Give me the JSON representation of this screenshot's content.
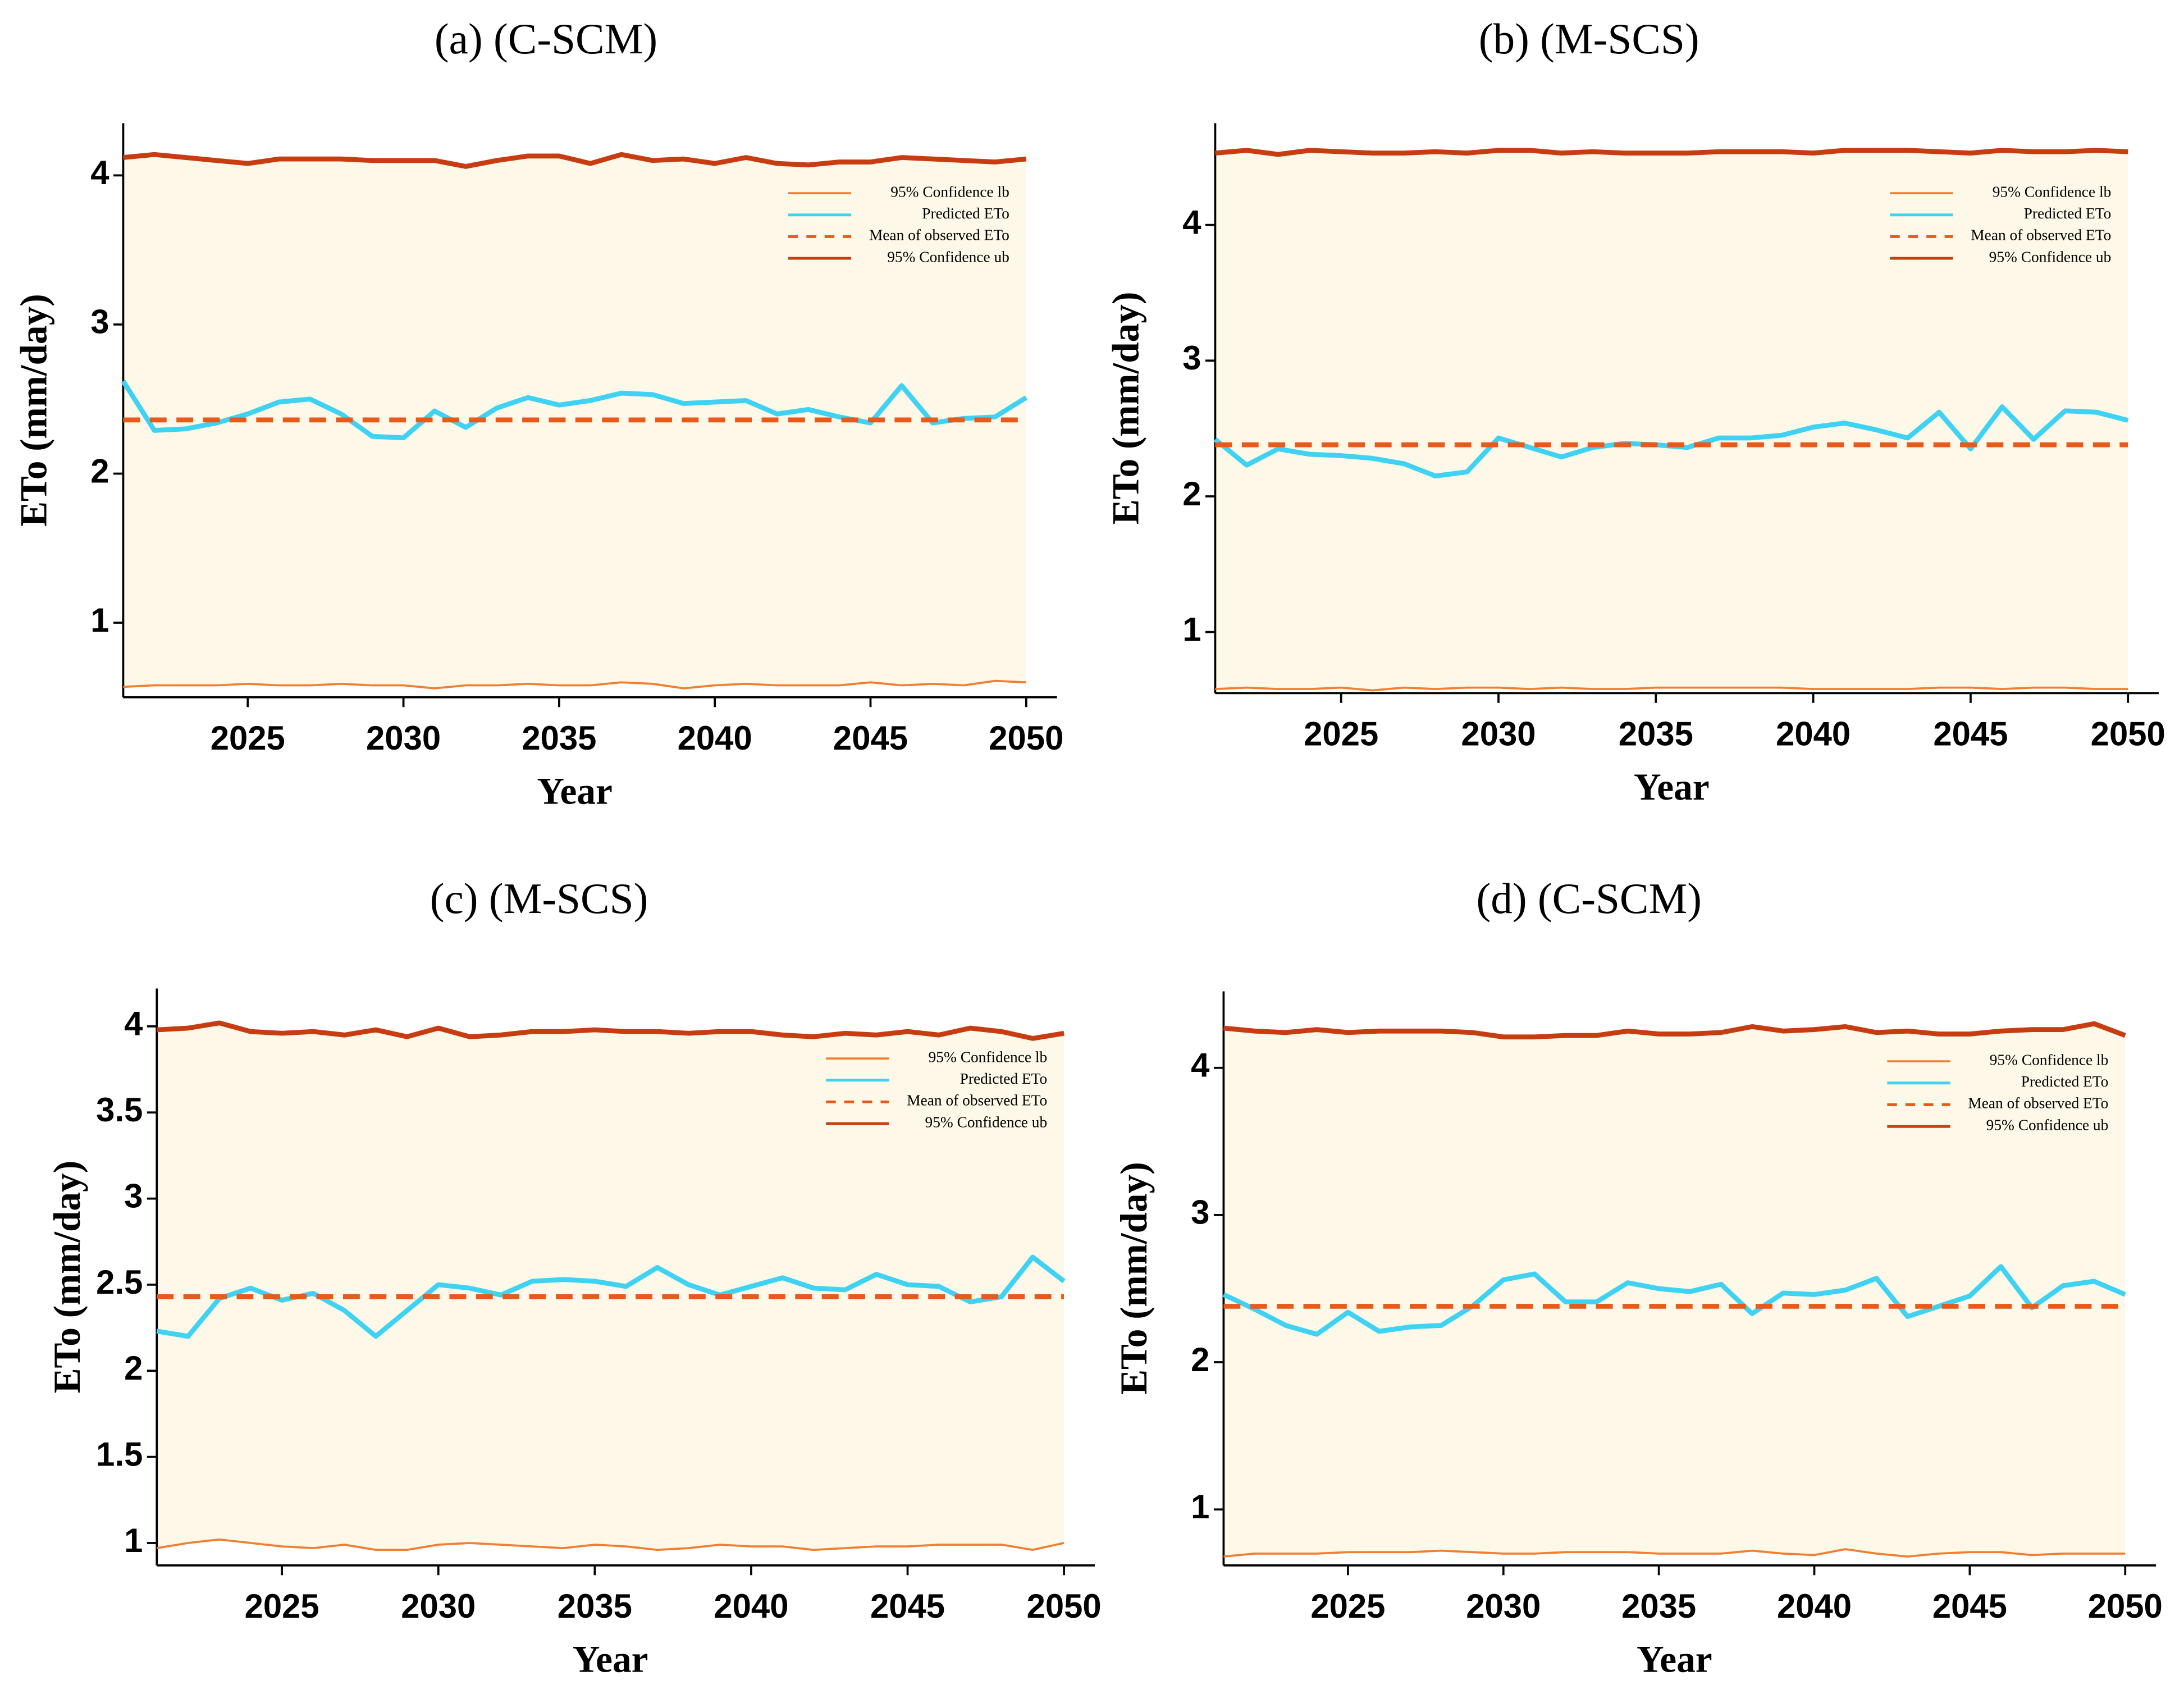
{
  "chart_data": [
    {
      "type": "line",
      "title": "(a) (C-SCM)",
      "xlabel": "Year",
      "ylabel": "ETo (mm/day)",
      "x": [
        2021,
        2022,
        2023,
        2024,
        2025,
        2026,
        2027,
        2028,
        2029,
        2030,
        2031,
        2032,
        2033,
        2034,
        2035,
        2036,
        2037,
        2038,
        2039,
        2040,
        2041,
        2042,
        2043,
        2044,
        2045,
        2046,
        2047,
        2048,
        2049,
        2050
      ],
      "xlim": [
        2021,
        2050
      ],
      "xticks": [
        2025,
        2030,
        2035,
        2040,
        2045,
        2050
      ],
      "ylim": [
        0.5,
        4.35
      ],
      "yticks": [
        1,
        2,
        3,
        4
      ],
      "legend": "upper right",
      "band_color": "#fdf8e7",
      "series": [
        {
          "name": "95% Confidence lb",
          "color": "#f07f30",
          "linewidth": 1.5,
          "linestyle": "solid",
          "values": [
            0.57,
            0.58,
            0.58,
            0.58,
            0.59,
            0.58,
            0.58,
            0.59,
            0.58,
            0.58,
            0.56,
            0.58,
            0.58,
            0.59,
            0.58,
            0.58,
            0.6,
            0.59,
            0.56,
            0.58,
            0.59,
            0.58,
            0.58,
            0.58,
            0.6,
            0.58,
            0.59,
            0.58,
            0.61,
            0.6
          ]
        },
        {
          "name": "Predicted ETo",
          "color": "#3fd2f2",
          "linewidth": 3.5,
          "linestyle": "solid",
          "values": [
            2.62,
            2.29,
            2.3,
            2.34,
            2.4,
            2.48,
            2.5,
            2.4,
            2.25,
            2.24,
            2.42,
            2.31,
            2.44,
            2.51,
            2.46,
            2.49,
            2.54,
            2.53,
            2.47,
            2.48,
            2.49,
            2.4,
            2.43,
            2.38,
            2.34,
            2.59,
            2.34,
            2.37,
            2.38,
            2.51
          ]
        },
        {
          "name": "Mean of observed ETo",
          "color": "#e8591a",
          "linewidth": 3.5,
          "linestyle": "dashed",
          "values": [
            2.36,
            2.36,
            2.36,
            2.36,
            2.36,
            2.36,
            2.36,
            2.36,
            2.36,
            2.36,
            2.36,
            2.36,
            2.36,
            2.36,
            2.36,
            2.36,
            2.36,
            2.36,
            2.36,
            2.36,
            2.36,
            2.36,
            2.36,
            2.36,
            2.36,
            2.36,
            2.36,
            2.36,
            2.36,
            2.36
          ]
        },
        {
          "name": "95% Confidence ub",
          "color": "#c83c12",
          "linewidth": 3.5,
          "linestyle": "solid",
          "values": [
            4.12,
            4.14,
            4.12,
            4.1,
            4.08,
            4.11,
            4.11,
            4.11,
            4.1,
            4.1,
            4.1,
            4.06,
            4.1,
            4.13,
            4.13,
            4.08,
            4.14,
            4.1,
            4.11,
            4.08,
            4.12,
            4.08,
            4.07,
            4.09,
            4.09,
            4.12,
            4.11,
            4.1,
            4.09,
            4.11
          ]
        }
      ]
    },
    {
      "type": "line",
      "title": "(b) (M-SCS)",
      "xlabel": "Year",
      "ylabel": "ETo (mm/day)",
      "x": [
        2021,
        2022,
        2023,
        2024,
        2025,
        2026,
        2027,
        2028,
        2029,
        2030,
        2031,
        2032,
        2033,
        2034,
        2035,
        2036,
        2037,
        2038,
        2039,
        2040,
        2041,
        2042,
        2043,
        2044,
        2045,
        2046,
        2047,
        2048,
        2049,
        2050
      ],
      "xlim": [
        2021,
        2050
      ],
      "xticks": [
        2025,
        2030,
        2035,
        2040,
        2045,
        2050
      ],
      "ylim": [
        0.55,
        4.75
      ],
      "yticks": [
        1,
        2,
        3,
        4
      ],
      "legend": "upper right",
      "band_color": "#fdf8e7",
      "series": [
        {
          "name": "95% Confidence lb",
          "color": "#f07f30",
          "linewidth": 1.5,
          "linestyle": "solid",
          "values": [
            0.58,
            0.59,
            0.58,
            0.58,
            0.59,
            0.57,
            0.59,
            0.58,
            0.59,
            0.59,
            0.58,
            0.59,
            0.58,
            0.58,
            0.59,
            0.59,
            0.59,
            0.59,
            0.59,
            0.58,
            0.58,
            0.58,
            0.58,
            0.59,
            0.59,
            0.58,
            0.59,
            0.59,
            0.58,
            0.58
          ]
        },
        {
          "name": "Predicted ETo",
          "color": "#3fd2f2",
          "linewidth": 3.5,
          "linestyle": "solid",
          "values": [
            2.42,
            2.23,
            2.35,
            2.31,
            2.3,
            2.28,
            2.24,
            2.15,
            2.18,
            2.43,
            2.36,
            2.29,
            2.36,
            2.39,
            2.38,
            2.36,
            2.43,
            2.43,
            2.45,
            2.51,
            2.54,
            2.49,
            2.43,
            2.62,
            2.35,
            2.66,
            2.42,
            2.63,
            2.62,
            2.56
          ]
        },
        {
          "name": "Mean of observed ETo",
          "color": "#e8591a",
          "linewidth": 3.5,
          "linestyle": "dashed",
          "values": [
            2.38,
            2.38,
            2.38,
            2.38,
            2.38,
            2.38,
            2.38,
            2.38,
            2.38,
            2.38,
            2.38,
            2.38,
            2.38,
            2.38,
            2.38,
            2.38,
            2.38,
            2.38,
            2.38,
            2.38,
            2.38,
            2.38,
            2.38,
            2.38,
            2.38,
            2.38,
            2.38,
            2.38,
            2.38,
            2.38
          ]
        },
        {
          "name": "95% Confidence ub",
          "color": "#c83c12",
          "linewidth": 3.5,
          "linestyle": "solid",
          "values": [
            4.53,
            4.55,
            4.52,
            4.55,
            4.54,
            4.53,
            4.53,
            4.54,
            4.53,
            4.55,
            4.55,
            4.53,
            4.54,
            4.53,
            4.53,
            4.53,
            4.54,
            4.54,
            4.54,
            4.53,
            4.55,
            4.55,
            4.55,
            4.54,
            4.53,
            4.55,
            4.54,
            4.54,
            4.55,
            4.54
          ]
        }
      ]
    },
    {
      "type": "line",
      "title": "(c) (M-SCS)",
      "xlabel": "Year",
      "ylabel": "ETo (mm/day)",
      "x": [
        2021,
        2022,
        2023,
        2024,
        2025,
        2026,
        2027,
        2028,
        2029,
        2030,
        2031,
        2032,
        2033,
        2034,
        2035,
        2036,
        2037,
        2038,
        2039,
        2040,
        2041,
        2042,
        2043,
        2044,
        2045,
        2046,
        2047,
        2048,
        2049,
        2050
      ],
      "xlim": [
        2021,
        2050
      ],
      "xticks": [
        2025,
        2030,
        2035,
        2040,
        2045,
        2050
      ],
      "ylim": [
        0.87,
        4.22
      ],
      "yticks": [
        1,
        1.5,
        2,
        2.5,
        3,
        3.5,
        4
      ],
      "legend": "upper right",
      "band_color": "#fdf8e7",
      "series": [
        {
          "name": "95% Confidence lb",
          "color": "#f07f30",
          "linewidth": 1.5,
          "linestyle": "solid",
          "values": [
            0.97,
            1.0,
            1.02,
            1.0,
            0.98,
            0.97,
            0.99,
            0.96,
            0.96,
            0.99,
            1.0,
            0.99,
            0.98,
            0.97,
            0.99,
            0.98,
            0.96,
            0.97,
            0.99,
            0.98,
            0.98,
            0.96,
            0.97,
            0.98,
            0.98,
            0.99,
            0.99,
            0.99,
            0.96,
            1.0
          ]
        },
        {
          "name": "Predicted ETo",
          "color": "#3fd2f2",
          "linewidth": 3.5,
          "linestyle": "solid",
          "values": [
            2.23,
            2.2,
            2.42,
            2.48,
            2.41,
            2.45,
            2.35,
            2.2,
            2.35,
            2.5,
            2.48,
            2.44,
            2.52,
            2.53,
            2.52,
            2.49,
            2.6,
            2.5,
            2.44,
            2.49,
            2.54,
            2.48,
            2.47,
            2.56,
            2.5,
            2.49,
            2.4,
            2.43,
            2.66,
            2.52
          ]
        },
        {
          "name": "Mean of observed ETo",
          "color": "#e8591a",
          "linewidth": 3.5,
          "linestyle": "dashed",
          "values": [
            2.43,
            2.43,
            2.43,
            2.43,
            2.43,
            2.43,
            2.43,
            2.43,
            2.43,
            2.43,
            2.43,
            2.43,
            2.43,
            2.43,
            2.43,
            2.43,
            2.43,
            2.43,
            2.43,
            2.43,
            2.43,
            2.43,
            2.43,
            2.43,
            2.43,
            2.43,
            2.43,
            2.43,
            2.43,
            2.43
          ]
        },
        {
          "name": "95% Confidence ub",
          "color": "#c83c12",
          "linewidth": 3.5,
          "linestyle": "solid",
          "values": [
            3.98,
            3.99,
            4.02,
            3.97,
            3.96,
            3.97,
            3.95,
            3.98,
            3.94,
            3.99,
            3.94,
            3.95,
            3.97,
            3.97,
            3.98,
            3.97,
            3.97,
            3.96,
            3.97,
            3.97,
            3.95,
            3.94,
            3.96,
            3.95,
            3.97,
            3.95,
            3.99,
            3.97,
            3.93,
            3.96
          ]
        }
      ]
    },
    {
      "type": "line",
      "title": "(d) (C-SCM)",
      "xlabel": "Year",
      "ylabel": "ETo (mm/day)",
      "x": [
        2021,
        2022,
        2023,
        2024,
        2025,
        2026,
        2027,
        2028,
        2029,
        2030,
        2031,
        2032,
        2033,
        2034,
        2035,
        2036,
        2037,
        2038,
        2039,
        2040,
        2041,
        2042,
        2043,
        2044,
        2045,
        2046,
        2047,
        2048,
        2049,
        2050
      ],
      "xlim": [
        2021,
        2050
      ],
      "xticks": [
        2025,
        2030,
        2035,
        2040,
        2045,
        2050
      ],
      "ylim": [
        0.62,
        4.52
      ],
      "yticks": [
        1,
        2,
        3,
        4
      ],
      "legend": "upper right",
      "band_color": "#fdf8e7",
      "series": [
        {
          "name": "95% Confidence lb",
          "color": "#f07f30",
          "linewidth": 1.5,
          "linestyle": "solid",
          "values": [
            0.68,
            0.7,
            0.7,
            0.7,
            0.71,
            0.71,
            0.71,
            0.72,
            0.71,
            0.7,
            0.7,
            0.71,
            0.71,
            0.71,
            0.7,
            0.7,
            0.7,
            0.72,
            0.7,
            0.69,
            0.73,
            0.7,
            0.68,
            0.7,
            0.71,
            0.71,
            0.69,
            0.7,
            0.7,
            0.7
          ]
        },
        {
          "name": "Predicted ETo",
          "color": "#3fd2f2",
          "linewidth": 3.5,
          "linestyle": "solid",
          "values": [
            2.46,
            2.36,
            2.25,
            2.19,
            2.34,
            2.21,
            2.24,
            2.25,
            2.38,
            2.56,
            2.6,
            2.41,
            2.41,
            2.54,
            2.5,
            2.48,
            2.53,
            2.33,
            2.47,
            2.46,
            2.49,
            2.57,
            2.31,
            2.38,
            2.45,
            2.65,
            2.37,
            2.52,
            2.55,
            2.46
          ]
        },
        {
          "name": "Mean of observed ETo",
          "color": "#e8591a",
          "linewidth": 3.5,
          "linestyle": "dashed",
          "values": [
            2.38,
            2.38,
            2.38,
            2.38,
            2.38,
            2.38,
            2.38,
            2.38,
            2.38,
            2.38,
            2.38,
            2.38,
            2.38,
            2.38,
            2.38,
            2.38,
            2.38,
            2.38,
            2.38,
            2.38,
            2.38,
            2.38,
            2.38,
            2.38,
            2.38,
            2.38,
            2.38,
            2.38,
            2.38,
            2.38
          ]
        },
        {
          "name": "95% Confidence ub",
          "color": "#c83c12",
          "linewidth": 3.5,
          "linestyle": "solid",
          "values": [
            4.27,
            4.25,
            4.24,
            4.26,
            4.24,
            4.25,
            4.25,
            4.25,
            4.24,
            4.21,
            4.21,
            4.22,
            4.22,
            4.25,
            4.23,
            4.23,
            4.24,
            4.28,
            4.25,
            4.26,
            4.28,
            4.24,
            4.25,
            4.23,
            4.23,
            4.25,
            4.26,
            4.26,
            4.3,
            4.22
          ]
        }
      ]
    }
  ]
}
